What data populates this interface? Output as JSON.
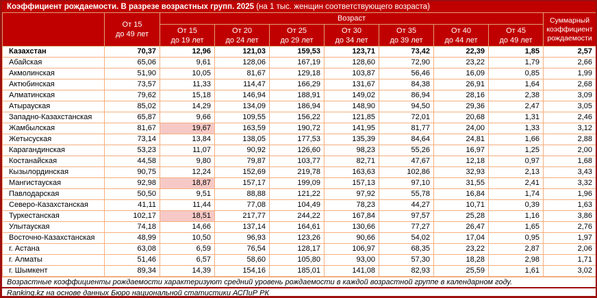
{
  "colors": {
    "accent": "#c00000",
    "frame": "#9c0e0e",
    "cell_border": "#f4ae7d",
    "header_border": "#e0a070",
    "highlight": "#f6c9c6",
    "header_text": "#ffffff",
    "body_text": "#000000"
  },
  "chart_data": {
    "type": "table",
    "title": "Коэффициент рождаемости. В разрезе возрастных групп. 2025",
    "title_note": "(на 1 тыс. женщин соответствующего возраста)",
    "header": {
      "region": "",
      "total": "От 15\nдо 49 лет",
      "age_group": "Возраст",
      "ages": [
        "От 15\nдо 19 лет",
        "От 20\nдо 24 лет",
        "От 25\nдо 29 лет",
        "От 30\nдо 34 лет",
        "От 35\nдо 39 лет",
        "От 40\nдо 44 лет",
        "От 45\nдо 49 лет"
      ],
      "summary": "Суммарный\nкоэффициент\nрождаемости"
    },
    "rows": [
      {
        "region": "Казахстан",
        "bold": true,
        "highlight": [],
        "values": [
          "70,37",
          "12,96",
          "121,03",
          "159,53",
          "123,71",
          "73,42",
          "22,39",
          "1,85",
          "2,57"
        ]
      },
      {
        "region": "Абайская",
        "bold": false,
        "highlight": [],
        "values": [
          "65,06",
          "9,61",
          "128,06",
          "167,19",
          "128,60",
          "72,90",
          "23,22",
          "1,79",
          "2,66"
        ]
      },
      {
        "region": "Акмолинская",
        "bold": false,
        "highlight": [],
        "values": [
          "51,90",
          "10,05",
          "81,67",
          "129,18",
          "103,87",
          "56,46",
          "16,09",
          "0,85",
          "1,99"
        ]
      },
      {
        "region": "Актюбинская",
        "bold": false,
        "highlight": [],
        "values": [
          "73,57",
          "11,33",
          "114,47",
          "166,29",
          "131,67",
          "84,38",
          "26,91",
          "1,64",
          "2,68"
        ]
      },
      {
        "region": "Алматинская",
        "bold": false,
        "highlight": [],
        "values": [
          "79,62",
          "15,18",
          "146,94",
          "188,91",
          "149,02",
          "86,94",
          "28,16",
          "2,38",
          "3,09"
        ]
      },
      {
        "region": "Атырауская",
        "bold": false,
        "highlight": [],
        "values": [
          "85,02",
          "14,29",
          "134,09",
          "186,94",
          "148,90",
          "94,50",
          "29,36",
          "2,47",
          "3,05"
        ]
      },
      {
        "region": "Западно-Казахстанская",
        "bold": false,
        "highlight": [],
        "values": [
          "65,87",
          "9,66",
          "109,55",
          "156,22",
          "121,85",
          "72,01",
          "20,68",
          "1,31",
          "2,46"
        ]
      },
      {
        "region": "Жамбылская",
        "bold": false,
        "highlight": [
          1
        ],
        "values": [
          "81,67",
          "19,67",
          "163,59",
          "190,72",
          "141,95",
          "81,77",
          "24,00",
          "1,33",
          "3,12"
        ]
      },
      {
        "region": "Жетысуская",
        "bold": false,
        "highlight": [],
        "values": [
          "73,14",
          "13,84",
          "138,05",
          "177,53",
          "135,39",
          "84,64",
          "24,81",
          "1,66",
          "2,88"
        ]
      },
      {
        "region": "Карагандинская",
        "bold": false,
        "highlight": [],
        "values": [
          "53,23",
          "11,07",
          "90,92",
          "126,60",
          "98,23",
          "55,26",
          "16,97",
          "1,25",
          "2,00"
        ]
      },
      {
        "region": "Костанайская",
        "bold": false,
        "highlight": [],
        "values": [
          "44,58",
          "9,80",
          "79,87",
          "103,77",
          "82,71",
          "47,67",
          "12,18",
          "0,97",
          "1,68"
        ]
      },
      {
        "region": "Кызылординская",
        "bold": false,
        "highlight": [],
        "values": [
          "90,75",
          "12,24",
          "152,69",
          "219,78",
          "163,63",
          "102,86",
          "32,93",
          "2,13",
          "3,43"
        ]
      },
      {
        "region": "Мангистауская",
        "bold": false,
        "highlight": [
          1
        ],
        "values": [
          "92,98",
          "18,87",
          "157,17",
          "199,09",
          "157,13",
          "97,10",
          "31,55",
          "2,41",
          "3,32"
        ]
      },
      {
        "region": "Павлодарская",
        "bold": false,
        "highlight": [],
        "values": [
          "50,50",
          "9,51",
          "88,88",
          "121,22",
          "97,92",
          "55,78",
          "16,84",
          "1,74",
          "1,96"
        ]
      },
      {
        "region": "Северо-Казахстанская",
        "bold": false,
        "highlight": [],
        "values": [
          "41,11",
          "11,44",
          "77,08",
          "104,49",
          "78,23",
          "44,27",
          "10,71",
          "0,39",
          "1,63"
        ]
      },
      {
        "region": "Туркестанская",
        "bold": false,
        "highlight": [
          1
        ],
        "values": [
          "102,17",
          "18,51",
          "217,77",
          "244,22",
          "167,84",
          "97,57",
          "25,28",
          "1,16",
          "3,86"
        ]
      },
      {
        "region": "Улытауская",
        "bold": false,
        "highlight": [],
        "values": [
          "74,18",
          "14,66",
          "137,14",
          "164,61",
          "130,66",
          "77,27",
          "26,47",
          "1,65",
          "2,76"
        ]
      },
      {
        "region": "Восточно-Казахстанская",
        "bold": false,
        "highlight": [],
        "values": [
          "48,99",
          "10,50",
          "96,93",
          "123,26",
          "90,66",
          "54,02",
          "17,04",
          "0,95",
          "1,97"
        ]
      },
      {
        "region": "г. Астана",
        "bold": false,
        "highlight": [],
        "values": [
          "63,08",
          "6,59",
          "76,54",
          "128,17",
          "106,97",
          "68,35",
          "23,22",
          "2,87",
          "2,06"
        ]
      },
      {
        "region": "г. Алматы",
        "bold": false,
        "highlight": [],
        "values": [
          "51,46",
          "6,57",
          "58,60",
          "105,80",
          "93,00",
          "57,30",
          "18,28",
          "2,98",
          "1,71"
        ]
      },
      {
        "region": "г. Шымкент",
        "bold": false,
        "highlight": [],
        "values": [
          "89,34",
          "14,39",
          "154,16",
          "185,01",
          "141,08",
          "82,93",
          "25,59",
          "1,61",
          "3,02"
        ]
      }
    ],
    "footnotes": [
      "Возрастные коэффициенты рождаемости характеризуют средний уровень рождаемости в каждой возрастной группе в календарном году.",
      "Ranking.kz на основе данных Бюро национальной статистики АСПиР РК"
    ]
  }
}
